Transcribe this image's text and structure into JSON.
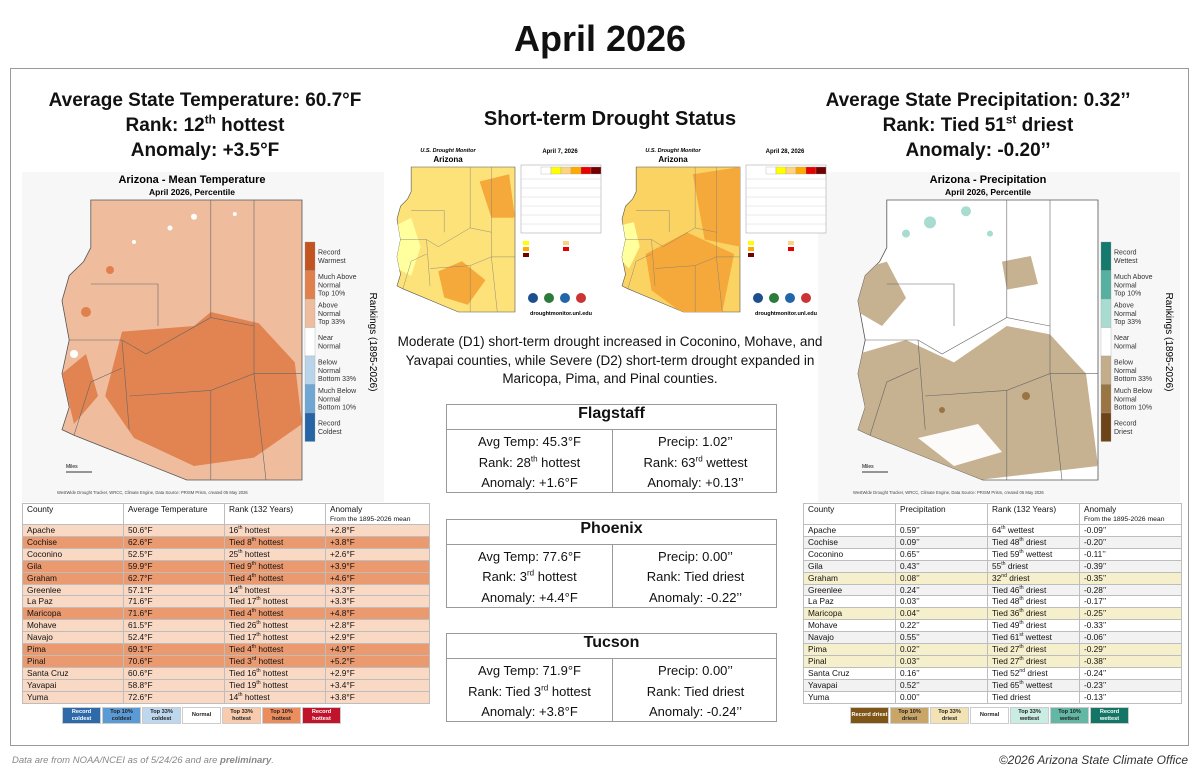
{
  "title": "April 2026",
  "temperature": {
    "headline": [
      "Average State Temperature: 60.7°F",
      "Rank: 12th hottest",
      "Anomaly: +3.5°F"
    ],
    "map": {
      "title": "Arizona - Mean Temperature",
      "subtitle": "April 2026, Percentile",
      "axis_label": "Rankings (1895-2026)",
      "scale_label": "Miles",
      "credit": "WestWide Drought Tracker, WRCC, Climate Engine, Data Source: PRISM Prism, created 05 May 2026",
      "legend": [
        {
          "lines": [
            "Record",
            "Warmest"
          ],
          "color": "#c2541f"
        },
        {
          "lines": [
            "Much Above",
            "Normal",
            "Top 10%"
          ],
          "color": "#e0814d"
        },
        {
          "lines": [
            "Above",
            "Normal",
            "Top 33%"
          ],
          "color": "#efbd9d"
        },
        {
          "lines": [
            "Near",
            "Normal"
          ],
          "color": "#ffffff"
        },
        {
          "lines": [
            "Below",
            "Normal",
            "Bottom 33%"
          ],
          "color": "#b9d4ea"
        },
        {
          "lines": [
            "Much Below",
            "Normal",
            "Bottom 10%"
          ],
          "color": "#6fa7d4"
        },
        {
          "lines": [
            "Record",
            "Coldest"
          ],
          "color": "#2565a6"
        }
      ]
    },
    "table": {
      "header": [
        "County",
        "Average Temperature",
        "Rank (132 Years)",
        "Anomaly"
      ],
      "header_note": "From the 1895-2026 mean",
      "rows": [
        {
          "cells": [
            "Apache",
            "50.6°F",
            "16th hottest",
            "+2.8°F"
          ],
          "color": "#f9d8c4"
        },
        {
          "cells": [
            "Cochise",
            "62.6°F",
            "Tied 8th hottest",
            "+3.8°F"
          ],
          "color": "#eb9a70"
        },
        {
          "cells": [
            "Coconino",
            "52.5°F",
            "25th hottest",
            "+2.6°F"
          ],
          "color": "#f9d8c4"
        },
        {
          "cells": [
            "Gila",
            "59.9°F",
            "Tied 9th hottest",
            "+3.9°F"
          ],
          "color": "#eb9a70"
        },
        {
          "cells": [
            "Graham",
            "62.7°F",
            "Tied 4th hottest",
            "+4.6°F"
          ],
          "color": "#eb9a70"
        },
        {
          "cells": [
            "Greenlee",
            "57.1°F",
            "14th hottest",
            "+3.3°F"
          ],
          "color": "#f9d8c4"
        },
        {
          "cells": [
            "La Paz",
            "71.6°F",
            "Tied 17th hottest",
            "+3.3°F"
          ],
          "color": "#f9d8c4"
        },
        {
          "cells": [
            "Maricopa",
            "71.6°F",
            "Tied 4th hottest",
            "+4.8°F"
          ],
          "color": "#eb9a70"
        },
        {
          "cells": [
            "Mohave",
            "61.5°F",
            "Tied 26th hottest",
            "+2.8°F"
          ],
          "color": "#f9d8c4"
        },
        {
          "cells": [
            "Navajo",
            "52.4°F",
            "Tied 17th hottest",
            "+2.9°F"
          ],
          "color": "#f9d8c4"
        },
        {
          "cells": [
            "Pima",
            "69.1°F",
            "Tied 4th hottest",
            "+4.9°F"
          ],
          "color": "#eb9a70"
        },
        {
          "cells": [
            "Pinal",
            "70.6°F",
            "Tied 3rd hottest",
            "+5.2°F"
          ],
          "color": "#eb9a70"
        },
        {
          "cells": [
            "Santa Cruz",
            "60.6°F",
            "Tied 16th hottest",
            "+2.9°F"
          ],
          "color": "#f9d8c4"
        },
        {
          "cells": [
            "Yavapai",
            "58.8°F",
            "Tied 19th hottest",
            "+3.4°F"
          ],
          "color": "#f9d8c4"
        },
        {
          "cells": [
            "Yuma",
            "72.6°F",
            "14th hottest",
            "+3.8°F"
          ],
          "color": "#f9d8c4"
        }
      ]
    },
    "key": [
      {
        "label": "Record coldest",
        "color": "#2e6aa9"
      },
      {
        "label": "Top 10% coldest",
        "color": "#5b9bd5"
      },
      {
        "label": "Top 33% coldest",
        "color": "#bdd7ee"
      },
      {
        "label": "Normal",
        "color": "#ffffff"
      },
      {
        "label": "Top 33% hottest",
        "color": "#f8cbad"
      },
      {
        "label": "Top 10% hottest",
        "color": "#ec8d5e"
      },
      {
        "label": "Record hottest",
        "color": "#c0142b"
      }
    ]
  },
  "precipitation": {
    "headline": [
      "Average State Precipitation: 0.32’’",
      "Rank: Tied 51st driest",
      "Anomaly: -0.20’’"
    ],
    "map": {
      "title": "Arizona - Precipitation",
      "subtitle": "April 2026, Percentile",
      "axis_label": "Rankings (1895-2026)",
      "scale_label": "Miles",
      "credit": "WestWide Drought Tracker, WRCC, Climate Engine, Data Source: PRISM Prism, created 05 May 2026",
      "legend": [
        {
          "lines": [
            "Record",
            "Wettest"
          ],
          "color": "#157a6e"
        },
        {
          "lines": [
            "Much Above",
            "Normal",
            "Top 10%"
          ],
          "color": "#55b09f"
        },
        {
          "lines": [
            "Above",
            "Normal",
            "Top 33%"
          ],
          "color": "#a9dcd0"
        },
        {
          "lines": [
            "Near",
            "Normal"
          ],
          "color": "#ffffff"
        },
        {
          "lines": [
            "Below",
            "Normal",
            "Bottom 33%"
          ],
          "color": "#c3ad8b"
        },
        {
          "lines": [
            "Much Below",
            "Normal",
            "Bottom 10%"
          ],
          "color": "#9a7443"
        },
        {
          "lines": [
            "Record",
            "Driest"
          ],
          "color": "#6d4417"
        }
      ]
    },
    "table": {
      "header": [
        "County",
        "Precipitation",
        "Rank (132 Years)",
        "Anomaly"
      ],
      "header_note": "From the 1895-2026 mean",
      "rows": [
        {
          "cells": [
            "Apache",
            "0.59’’",
            "64th wettest",
            "-0.09’’"
          ],
          "color": "#ffffff"
        },
        {
          "cells": [
            "Cochise",
            "0.09’’",
            "Tied 48th driest",
            "-0.20’’"
          ],
          "color": "#f2f2f2"
        },
        {
          "cells": [
            "Coconino",
            "0.65’’",
            "Tied 59th wettest",
            "-0.11’’"
          ],
          "color": "#ffffff"
        },
        {
          "cells": [
            "Gila",
            "0.43’’",
            "55th driest",
            "-0.39’’"
          ],
          "color": "#f2f2f2"
        },
        {
          "cells": [
            "Graham",
            "0.08’’",
            "32nd driest",
            "-0.35’’"
          ],
          "color": "#f6efcc"
        },
        {
          "cells": [
            "Greenlee",
            "0.24’’",
            "Tied 46th driest",
            "-0.28’’"
          ],
          "color": "#f2f2f2"
        },
        {
          "cells": [
            "La Paz",
            "0.03’’",
            "Tied 48th driest",
            "-0.17’’"
          ],
          "color": "#ffffff"
        },
        {
          "cells": [
            "Maricopa",
            "0.04’’",
            "Tied 36th driest",
            "-0.25’’"
          ],
          "color": "#f6efcc"
        },
        {
          "cells": [
            "Mohave",
            "0.22’’",
            "Tied 49th driest",
            "-0.33’’"
          ],
          "color": "#ffffff"
        },
        {
          "cells": [
            "Navajo",
            "0.55’’",
            "Tied 61st wettest",
            "-0.06’’"
          ],
          "color": "#f2f2f2"
        },
        {
          "cells": [
            "Pima",
            "0.02’’",
            "Tied 27th driest",
            "-0.29’’"
          ],
          "color": "#f6efcc"
        },
        {
          "cells": [
            "Pinal",
            "0.03’’",
            "Tied 27th driest",
            "-0.38’’"
          ],
          "color": "#f6efcc"
        },
        {
          "cells": [
            "Santa Cruz",
            "0.16’’",
            "Tied 52nd driest",
            "-0.24’’"
          ],
          "color": "#ffffff"
        },
        {
          "cells": [
            "Yavapai",
            "0.52’’",
            "Tied 65th wettest",
            "-0.23’’"
          ],
          "color": "#f2f2f2"
        },
        {
          "cells": [
            "Yuma",
            "0.00’’",
            "Tied driest",
            "-0.13’’"
          ],
          "color": "#ffffff"
        }
      ]
    },
    "key": [
      {
        "label": "Record driest",
        "color": "#7f5417"
      },
      {
        "label": "Top 10% driest",
        "color": "#c9a567"
      },
      {
        "label": "Top 33% driest",
        "color": "#f3e2b3"
      },
      {
        "label": "Normal",
        "color": "#ffffff"
      },
      {
        "label": "Top 33% wettest",
        "color": "#c9ece3"
      },
      {
        "label": "Top 10% wettest",
        "color": "#62b8a5"
      },
      {
        "label": "Record wettest",
        "color": "#127566"
      }
    ]
  },
  "drought": {
    "title": "Short-term Drought Status",
    "maps": [
      {
        "source": "U.S. Drought Monitor",
        "state": "Arizona",
        "date": "April 7, 2026",
        "site": "droughtmonitor.unl.edu"
      },
      {
        "source": "U.S. Drought Monitor",
        "state": "Arizona",
        "date": "April 28, 2026",
        "site": "droughtmonitor.unl.edu"
      }
    ],
    "summary": "Moderate (D1) short-term drought increased in Coconino, Mohave, and Yavapai counties, while Severe (D2) short-term drought expanded in Maricopa, Pima, and Pinal counties."
  },
  "cities": [
    {
      "name": "Flagstaff",
      "rows": [
        [
          "Avg Temp: 45.3°F",
          "Precip: 1.02’’"
        ],
        [
          "Rank: 28th hottest",
          "Rank: 63rd wettest"
        ],
        [
          "Anomaly: +1.6°F",
          "Anomaly: +0.13’’"
        ]
      ]
    },
    {
      "name": "Phoenix",
      "rows": [
        [
          "Avg Temp: 77.6°F",
          "Precip: 0.00’’"
        ],
        [
          "Rank: 3rd hottest",
          "Rank: Tied driest"
        ],
        [
          "Anomaly: +4.4°F",
          "Anomaly: -0.22’’"
        ]
      ]
    },
    {
      "name": "Tucson",
      "rows": [
        [
          "Avg Temp: 71.9°F",
          "Precip: 0.00’’"
        ],
        [
          "Rank: Tied 3rd hottest",
          "Rank: Tied driest"
        ],
        [
          "Anomaly: +3.8°F",
          "Anomaly: -0.24’’"
        ]
      ]
    }
  ],
  "footer": {
    "note": "Data are from NOAA/NCEI as of 5/24/26 and are",
    "note_emphasis": "preliminary",
    "note_end": ".",
    "credit": "©2026 Arizona State Climate Office"
  }
}
